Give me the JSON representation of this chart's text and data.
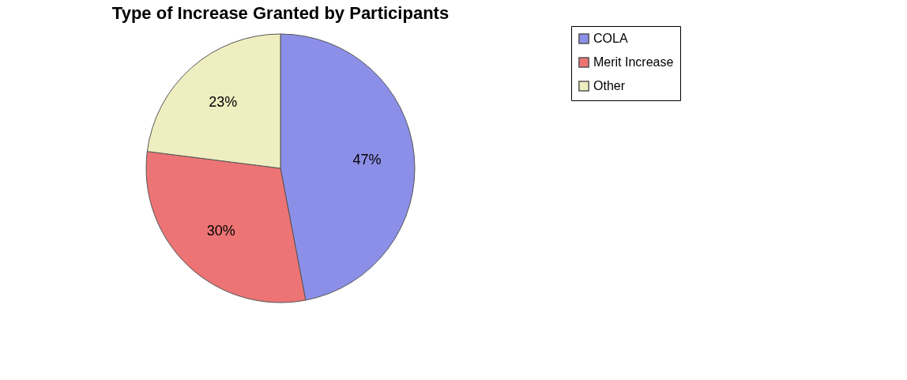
{
  "chart_data": {
    "type": "pie",
    "title": "Type of Increase Granted by Participants",
    "categories": [
      "COLA",
      "Merit Increase",
      "Other"
    ],
    "values": [
      47,
      30,
      23
    ],
    "colors": [
      "#8c8fe8",
      "#ec7474",
      "#eeeec0"
    ],
    "value_labels": [
      "47%",
      "30%",
      "23%"
    ],
    "legend": "right"
  }
}
